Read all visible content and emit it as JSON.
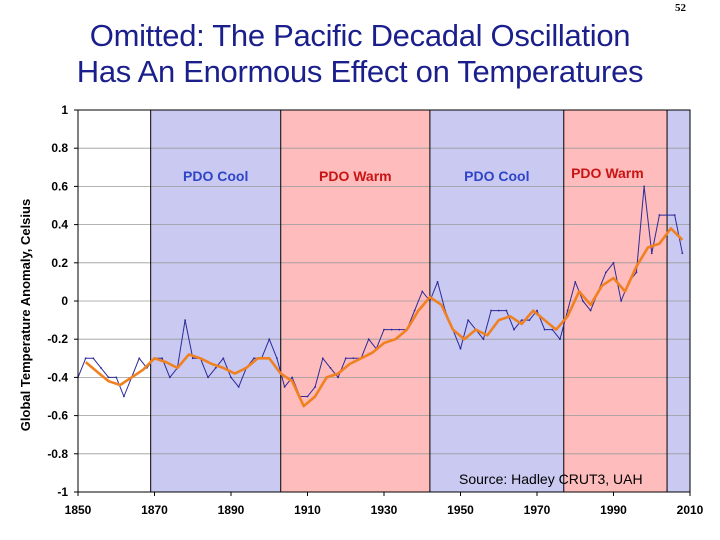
{
  "slide_number": "52",
  "title_lines": [
    "Omitted:  The Pacific Decadal Oscillation",
    "Has An Enormous Effect on Temperatures"
  ],
  "colors": {
    "title": "#1a1f8c",
    "cool_band": "#c9c9f2",
    "warm_band": "#ffbcbc",
    "cool_label": "#2f45c8",
    "warm_label": "#c81414",
    "monthly_series": "#2a2a9a",
    "smoothed_series": "#f08020"
  },
  "chart_data": {
    "type": "line",
    "title": "",
    "ylabel": "Global Temperature Anomaly, Celsius",
    "xlabel": "",
    "xlim": [
      1850,
      2010
    ],
    "ylim": [
      -1,
      1
    ],
    "x_ticks": [
      "1850",
      "1870",
      "1890",
      "1910",
      "1930",
      "1950",
      "1970",
      "1990",
      "2010"
    ],
    "y_ticks": [
      "1",
      "0.8",
      "0.6",
      "0.4",
      "0.2",
      "0",
      "-0.2",
      "-0.4",
      "-0.6",
      "-0.8",
      "-1"
    ],
    "grid": "horizontal",
    "bands": [
      {
        "label": "PDO Cool",
        "kind": "cool",
        "start": 1869,
        "end": 1903
      },
      {
        "label": "PDO Warm",
        "kind": "warm",
        "start": 1903,
        "end": 1942
      },
      {
        "label": "PDO Cool",
        "kind": "cool",
        "start": 1942,
        "end": 1977
      },
      {
        "label": "PDO Warm",
        "kind": "warm",
        "start": 1977,
        "end": 2004
      },
      {
        "label": "",
        "kind": "cool",
        "start": 2004,
        "end": 2010
      }
    ],
    "annotations": [
      "Source:  Hadley CRUT3, UAH"
    ],
    "series": [
      {
        "style": "monthly",
        "x": [
          1850,
          1852,
          1854,
          1856,
          1858,
          1860,
          1862,
          1864,
          1866,
          1868,
          1870,
          1872,
          1874,
          1876,
          1878,
          1880,
          1882,
          1884,
          1886,
          1888,
          1890,
          1892,
          1894,
          1896,
          1898,
          1900,
          1902,
          1904,
          1906,
          1908,
          1910,
          1912,
          1914,
          1916,
          1918,
          1920,
          1922,
          1924,
          1926,
          1928,
          1930,
          1932,
          1934,
          1936,
          1938,
          1940,
          1942,
          1944,
          1946,
          1948,
          1950,
          1952,
          1954,
          1956,
          1958,
          1960,
          1962,
          1964,
          1966,
          1968,
          1970,
          1972,
          1974,
          1976,
          1978,
          1980,
          1982,
          1984,
          1986,
          1988,
          1990,
          1992,
          1994,
          1996,
          1998,
          2000,
          2002,
          2004,
          2006,
          2008
        ],
        "y": [
          -0.4,
          -0.3,
          -0.3,
          -0.35,
          -0.4,
          -0.4,
          -0.5,
          -0.4,
          -0.3,
          -0.35,
          -0.3,
          -0.3,
          -0.4,
          -0.35,
          -0.1,
          -0.3,
          -0.3,
          -0.4,
          -0.35,
          -0.3,
          -0.4,
          -0.45,
          -0.35,
          -0.3,
          -0.3,
          -0.2,
          -0.3,
          -0.45,
          -0.4,
          -0.5,
          -0.5,
          -0.45,
          -0.3,
          -0.35,
          -0.4,
          -0.3,
          -0.3,
          -0.3,
          -0.2,
          -0.25,
          -0.15,
          -0.15,
          -0.15,
          -0.15,
          -0.05,
          0.05,
          0.0,
          0.1,
          -0.05,
          -0.15,
          -0.25,
          -0.1,
          -0.15,
          -0.2,
          -0.05,
          -0.05,
          -0.05,
          -0.15,
          -0.1,
          -0.1,
          -0.05,
          -0.15,
          -0.15,
          -0.2,
          -0.05,
          0.1,
          0.0,
          -0.05,
          0.05,
          0.15,
          0.2,
          0.0,
          0.1,
          0.15,
          0.6,
          0.25,
          0.45,
          0.45,
          0.45,
          0.25
        ]
      },
      {
        "style": "smoothed",
        "x": [
          1852,
          1855,
          1858,
          1861,
          1864,
          1867,
          1870,
          1873,
          1876,
          1879,
          1882,
          1885,
          1888,
          1891,
          1894,
          1897,
          1900,
          1903,
          1906,
          1909,
          1912,
          1915,
          1918,
          1921,
          1924,
          1927,
          1930,
          1933,
          1936,
          1939,
          1942,
          1945,
          1948,
          1951,
          1954,
          1957,
          1960,
          1963,
          1966,
          1969,
          1972,
          1975,
          1978,
          1981,
          1984,
          1987,
          1990,
          1993,
          1996,
          1999,
          2002,
          2005,
          2008
        ],
        "y": [
          -0.32,
          -0.37,
          -0.42,
          -0.44,
          -0.4,
          -0.36,
          -0.3,
          -0.32,
          -0.35,
          -0.28,
          -0.3,
          -0.33,
          -0.35,
          -0.38,
          -0.35,
          -0.3,
          -0.3,
          -0.38,
          -0.42,
          -0.55,
          -0.5,
          -0.4,
          -0.38,
          -0.33,
          -0.3,
          -0.27,
          -0.22,
          -0.2,
          -0.15,
          -0.05,
          0.02,
          -0.02,
          -0.15,
          -0.2,
          -0.15,
          -0.18,
          -0.1,
          -0.08,
          -0.12,
          -0.05,
          -0.1,
          -0.15,
          -0.08,
          0.05,
          -0.02,
          0.08,
          0.12,
          0.05,
          0.18,
          0.28,
          0.3,
          0.38,
          0.32
        ]
      }
    ]
  }
}
